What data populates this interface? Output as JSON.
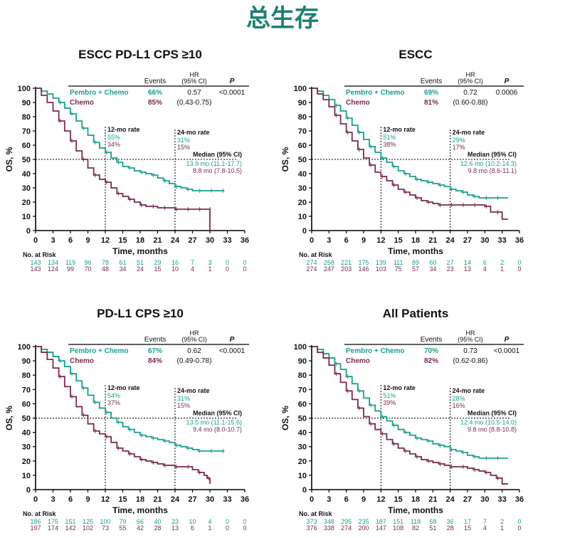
{
  "page_title": "总生存",
  "colors": {
    "pembro": "#1a9e8f",
    "chemo": "#7b2a52",
    "title": "#1e7f73",
    "text": "#111111"
  },
  "chart_data": [
    {
      "type": "line",
      "title": "ESCC PD-L1 CPS ≥10",
      "xlabel": "Time, months",
      "ylabel": "OS, %",
      "xlim": [
        0,
        36
      ],
      "ylim": [
        0,
        100
      ],
      "xticks": [
        "0",
        "3",
        "6",
        "9",
        "12",
        "15",
        "18",
        "21",
        "24",
        "27",
        "30",
        "33",
        "36"
      ],
      "yticks": [
        "0",
        "10",
        "20",
        "30",
        "40",
        "50",
        "60",
        "70",
        "80",
        "90",
        "100"
      ],
      "table_headers": {
        "events": "Events",
        "hr": "HR",
        "hr_ci": "(95% CI)",
        "p": "P"
      },
      "median_header": "Median (95% CI)",
      "rate12_label": "12-mo rate",
      "rate24_label": "24-mo rate",
      "risk_label": "No. at Risk",
      "series": [
        {
          "name": "Pembro + Chemo",
          "events": "66%",
          "hr": "0.57",
          "hr_ci": "(0.43-0.75)",
          "p": "<0.0001",
          "median": "13.9 mo (11.1-17.7)",
          "rate12": "55%",
          "rate24": "31%",
          "risk": [
            "143",
            "134",
            "119",
            "96",
            "78",
            "61",
            "51",
            "29",
            "16",
            "7",
            "3",
            "0",
            "0"
          ],
          "x": [
            0,
            1,
            2,
            3,
            4,
            5,
            6,
            7,
            8,
            9,
            10,
            11,
            12,
            13,
            14,
            15,
            16,
            17,
            18,
            19,
            20,
            21,
            22,
            23,
            24,
            25,
            26,
            27,
            28,
            29,
            30,
            31,
            32,
            32.5
          ],
          "y": [
            100,
            98,
            96,
            93,
            90,
            86,
            82,
            77,
            72,
            67,
            62,
            58,
            55,
            51,
            48,
            45,
            44,
            42,
            41,
            40,
            39,
            37,
            35,
            33,
            31,
            30,
            29,
            28,
            28,
            28,
            28,
            28,
            28,
            28
          ]
        },
        {
          "name": "Chemo",
          "events": "85%",
          "hr": "",
          "hr_ci": "",
          "p": "",
          "median": "8.8 mo (7.8-10.5)",
          "rate12": "34%",
          "rate24": "15%",
          "risk": [
            "143",
            "124",
            "99",
            "70",
            "48",
            "34",
            "24",
            "15",
            "10",
            "4",
            "1",
            "0",
            "0"
          ],
          "x": [
            0,
            1,
            2,
            3,
            4,
            5,
            6,
            7,
            8,
            9,
            10,
            11,
            12,
            13,
            14,
            15,
            16,
            17,
            18,
            19,
            20,
            21,
            22,
            23,
            24,
            25,
            26,
            27,
            28,
            29,
            29.8,
            30
          ],
          "y": [
            100,
            95,
            90,
            84,
            77,
            70,
            63,
            56,
            50,
            44,
            39,
            36,
            34,
            30,
            26,
            24,
            22,
            20,
            18,
            17,
            17,
            16,
            16,
            16,
            15,
            15,
            15,
            15,
            15,
            15,
            15,
            0
          ]
        }
      ]
    },
    {
      "type": "line",
      "title": "ESCC",
      "xlabel": "Time, months",
      "ylabel": "OS, %",
      "xlim": [
        0,
        36
      ],
      "ylim": [
        0,
        100
      ],
      "xticks": [
        "0",
        "3",
        "6",
        "9",
        "12",
        "15",
        "18",
        "21",
        "24",
        "27",
        "30",
        "33",
        "36"
      ],
      "yticks": [
        "0",
        "10",
        "20",
        "30",
        "40",
        "50",
        "60",
        "70",
        "80",
        "90",
        "100"
      ],
      "table_headers": {
        "events": "Events",
        "hr": "HR",
        "hr_ci": "(95% CI)",
        "p": "P"
      },
      "median_header": "Median (95% CI)",
      "rate12_label": "12-mo rate",
      "rate24_label": "24-mo rate",
      "risk_label": "No. at Risk",
      "series": [
        {
          "name": "Pembro + Chemo",
          "events": "69%",
          "hr": "0.72",
          "hr_ci": "(0.60-0.88)",
          "p": "0.0006",
          "median": "12.6 mo (10.2-14.3)",
          "rate12": "51%",
          "rate24": "29%",
          "risk": [
            "274",
            "258",
            "221",
            "175",
            "139",
            "111",
            "89",
            "60",
            "27",
            "14",
            "6",
            "2",
            "0"
          ],
          "x": [
            0,
            1,
            2,
            3,
            4,
            5,
            6,
            7,
            8,
            9,
            10,
            11,
            12,
            13,
            14,
            15,
            16,
            17,
            18,
            19,
            20,
            21,
            22,
            23,
            24,
            25,
            26,
            27,
            28,
            29,
            30,
            31,
            32,
            33,
            34
          ],
          "y": [
            100,
            98,
            95,
            92,
            88,
            84,
            79,
            74,
            69,
            64,
            59,
            55,
            51,
            48,
            45,
            42,
            40,
            38,
            36,
            35,
            34,
            33,
            32,
            31,
            29,
            28,
            27,
            25,
            24,
            23,
            23,
            23,
            23,
            23,
            23
          ]
        },
        {
          "name": "Chemo",
          "events": "81%",
          "hr": "",
          "hr_ci": "",
          "p": "",
          "median": "9.8 mo (8.6-11.1)",
          "rate12": "38%",
          "rate24": "17%",
          "risk": [
            "274",
            "247",
            "203",
            "146",
            "103",
            "75",
            "57",
            "34",
            "23",
            "13",
            "4",
            "1",
            "0"
          ],
          "x": [
            0,
            1,
            2,
            3,
            4,
            5,
            6,
            7,
            8,
            9,
            10,
            11,
            12,
            13,
            14,
            15,
            16,
            17,
            18,
            19,
            20,
            21,
            22,
            23,
            24,
            25,
            26,
            27,
            28,
            29,
            30,
            31,
            32,
            33,
            34
          ],
          "y": [
            100,
            96,
            92,
            87,
            81,
            75,
            69,
            63,
            57,
            51,
            46,
            41,
            38,
            35,
            32,
            29,
            27,
            25,
            23,
            21,
            20,
            19,
            18,
            18,
            18,
            18,
            18,
            18,
            18,
            18,
            17,
            13,
            13,
            8,
            8
          ]
        }
      ]
    },
    {
      "type": "line",
      "title": "PD-L1 CPS ≥10",
      "xlabel": "Time, months",
      "ylabel": "OS, %",
      "xlim": [
        0,
        36
      ],
      "ylim": [
        0,
        100
      ],
      "xticks": [
        "0",
        "3",
        "6",
        "9",
        "12",
        "15",
        "18",
        "21",
        "24",
        "27",
        "30",
        "33",
        "36"
      ],
      "yticks": [
        "0",
        "10",
        "20",
        "30",
        "40",
        "50",
        "60",
        "70",
        "80",
        "90",
        "100"
      ],
      "table_headers": {
        "events": "Events",
        "hr": "HR",
        "hr_ci": "(95% CI)",
        "p": "P"
      },
      "median_header": "Median (95% CI)",
      "rate12_label": "12-mo rate",
      "rate24_label": "24-mo rate",
      "risk_label": "No. at Risk",
      "series": [
        {
          "name": "Pembro + Chemo",
          "events": "67%",
          "hr": "0.62",
          "hr_ci": "(0.49-0.78)",
          "p": "<0.0001",
          "median": "13.5 mo (11.1-15.6)",
          "rate12": "54%",
          "rate24": "31%",
          "risk": [
            "186",
            "175",
            "151",
            "125",
            "100",
            "79",
            "66",
            "40",
            "23",
            "10",
            "4",
            "0",
            "0"
          ],
          "x": [
            0,
            1,
            2,
            3,
            4,
            5,
            6,
            7,
            8,
            9,
            10,
            11,
            12,
            13,
            14,
            15,
            16,
            17,
            18,
            19,
            20,
            21,
            22,
            23,
            24,
            25,
            26,
            27,
            28,
            29,
            30,
            31,
            32,
            32.5
          ],
          "y": [
            100,
            98,
            96,
            93,
            90,
            86,
            81,
            76,
            71,
            66,
            61,
            57,
            54,
            50,
            47,
            44,
            42,
            40,
            38,
            37,
            36,
            35,
            34,
            33,
            31,
            30,
            29,
            28,
            27,
            27,
            27,
            27,
            27,
            27
          ]
        },
        {
          "name": "Chemo",
          "events": "84%",
          "hr": "",
          "hr_ci": "",
          "p": "",
          "median": "9.4 mo (8.0-10.7)",
          "rate12": "37%",
          "rate24": "15%",
          "risk": [
            "197",
            "174",
            "142",
            "102",
            "73",
            "55",
            "42",
            "28",
            "13",
            "6",
            "1",
            "0",
            "0"
          ],
          "x": [
            0,
            1,
            2,
            3,
            4,
            5,
            6,
            7,
            8,
            9,
            10,
            11,
            12,
            13,
            14,
            15,
            16,
            17,
            18,
            19,
            20,
            21,
            22,
            23,
            24,
            25,
            26,
            27,
            28,
            29,
            29.5,
            30
          ],
          "y": [
            100,
            96,
            91,
            85,
            79,
            72,
            65,
            58,
            52,
            46,
            41,
            39,
            37,
            33,
            29,
            27,
            25,
            23,
            21,
            20,
            19,
            18,
            17,
            17,
            16,
            16,
            16,
            14,
            12,
            10,
            8,
            4
          ]
        }
      ]
    },
    {
      "type": "line",
      "title": "All Patients",
      "xlabel": "Time, months",
      "ylabel": "OS, %",
      "xlim": [
        0,
        36
      ],
      "ylim": [
        0,
        100
      ],
      "xticks": [
        "0",
        "3",
        "6",
        "9",
        "12",
        "15",
        "18",
        "21",
        "24",
        "27",
        "30",
        "33",
        "36"
      ],
      "yticks": [
        "0",
        "10",
        "20",
        "30",
        "40",
        "50",
        "60",
        "70",
        "80",
        "90",
        "100"
      ],
      "table_headers": {
        "events": "Events",
        "hr": "HR",
        "hr_ci": "(95% CI)",
        "p": "P"
      },
      "median_header": "Median (95% CI)",
      "rate12_label": "12-mo rate",
      "rate24_label": "24-mo rate",
      "risk_label": "No. at Risk",
      "series": [
        {
          "name": "Pembro + Chemo",
          "events": "70%",
          "hr": "0.73",
          "hr_ci": "(0.62-0.86)",
          "p": "<0.0001",
          "median": "12.4 mo (10.5-14.0)",
          "rate12": "51%",
          "rate24": "28%",
          "risk": [
            "373",
            "348",
            "295",
            "235",
            "187",
            "151",
            "118",
            "68",
            "36",
            "17",
            "7",
            "2",
            "0"
          ],
          "x": [
            0,
            1,
            2,
            3,
            4,
            5,
            6,
            7,
            8,
            9,
            10,
            11,
            12,
            13,
            14,
            15,
            16,
            17,
            18,
            19,
            20,
            21,
            22,
            23,
            24,
            25,
            26,
            27,
            28,
            29,
            30,
            31,
            32,
            33,
            34
          ],
          "y": [
            100,
            98,
            95,
            92,
            88,
            84,
            79,
            74,
            69,
            64,
            59,
            55,
            51,
            48,
            45,
            42,
            40,
            38,
            36,
            35,
            34,
            32,
            31,
            30,
            28,
            27,
            26,
            24,
            23,
            22,
            22,
            22,
            22,
            22,
            22
          ]
        },
        {
          "name": "Chemo",
          "events": "82%",
          "hr": "",
          "hr_ci": "",
          "p": "",
          "median": "9.8 mo (8.8-10.8)",
          "rate12": "39%",
          "rate24": "16%",
          "risk": [
            "376",
            "338",
            "274",
            "200",
            "147",
            "108",
            "82",
            "51",
            "28",
            "15",
            "4",
            "1",
            "0"
          ],
          "x": [
            0,
            1,
            2,
            3,
            4,
            5,
            6,
            7,
            8,
            9,
            10,
            11,
            12,
            13,
            14,
            15,
            16,
            17,
            18,
            19,
            20,
            21,
            22,
            23,
            24,
            25,
            26,
            27,
            28,
            29,
            30,
            31,
            32,
            33,
            34
          ],
          "y": [
            100,
            96,
            92,
            87,
            81,
            75,
            69,
            63,
            57,
            51,
            46,
            42,
            39,
            35,
            32,
            29,
            27,
            25,
            23,
            21,
            20,
            19,
            18,
            17,
            16,
            16,
            16,
            15,
            14,
            13,
            12,
            10,
            8,
            4,
            4
          ]
        }
      ]
    }
  ]
}
